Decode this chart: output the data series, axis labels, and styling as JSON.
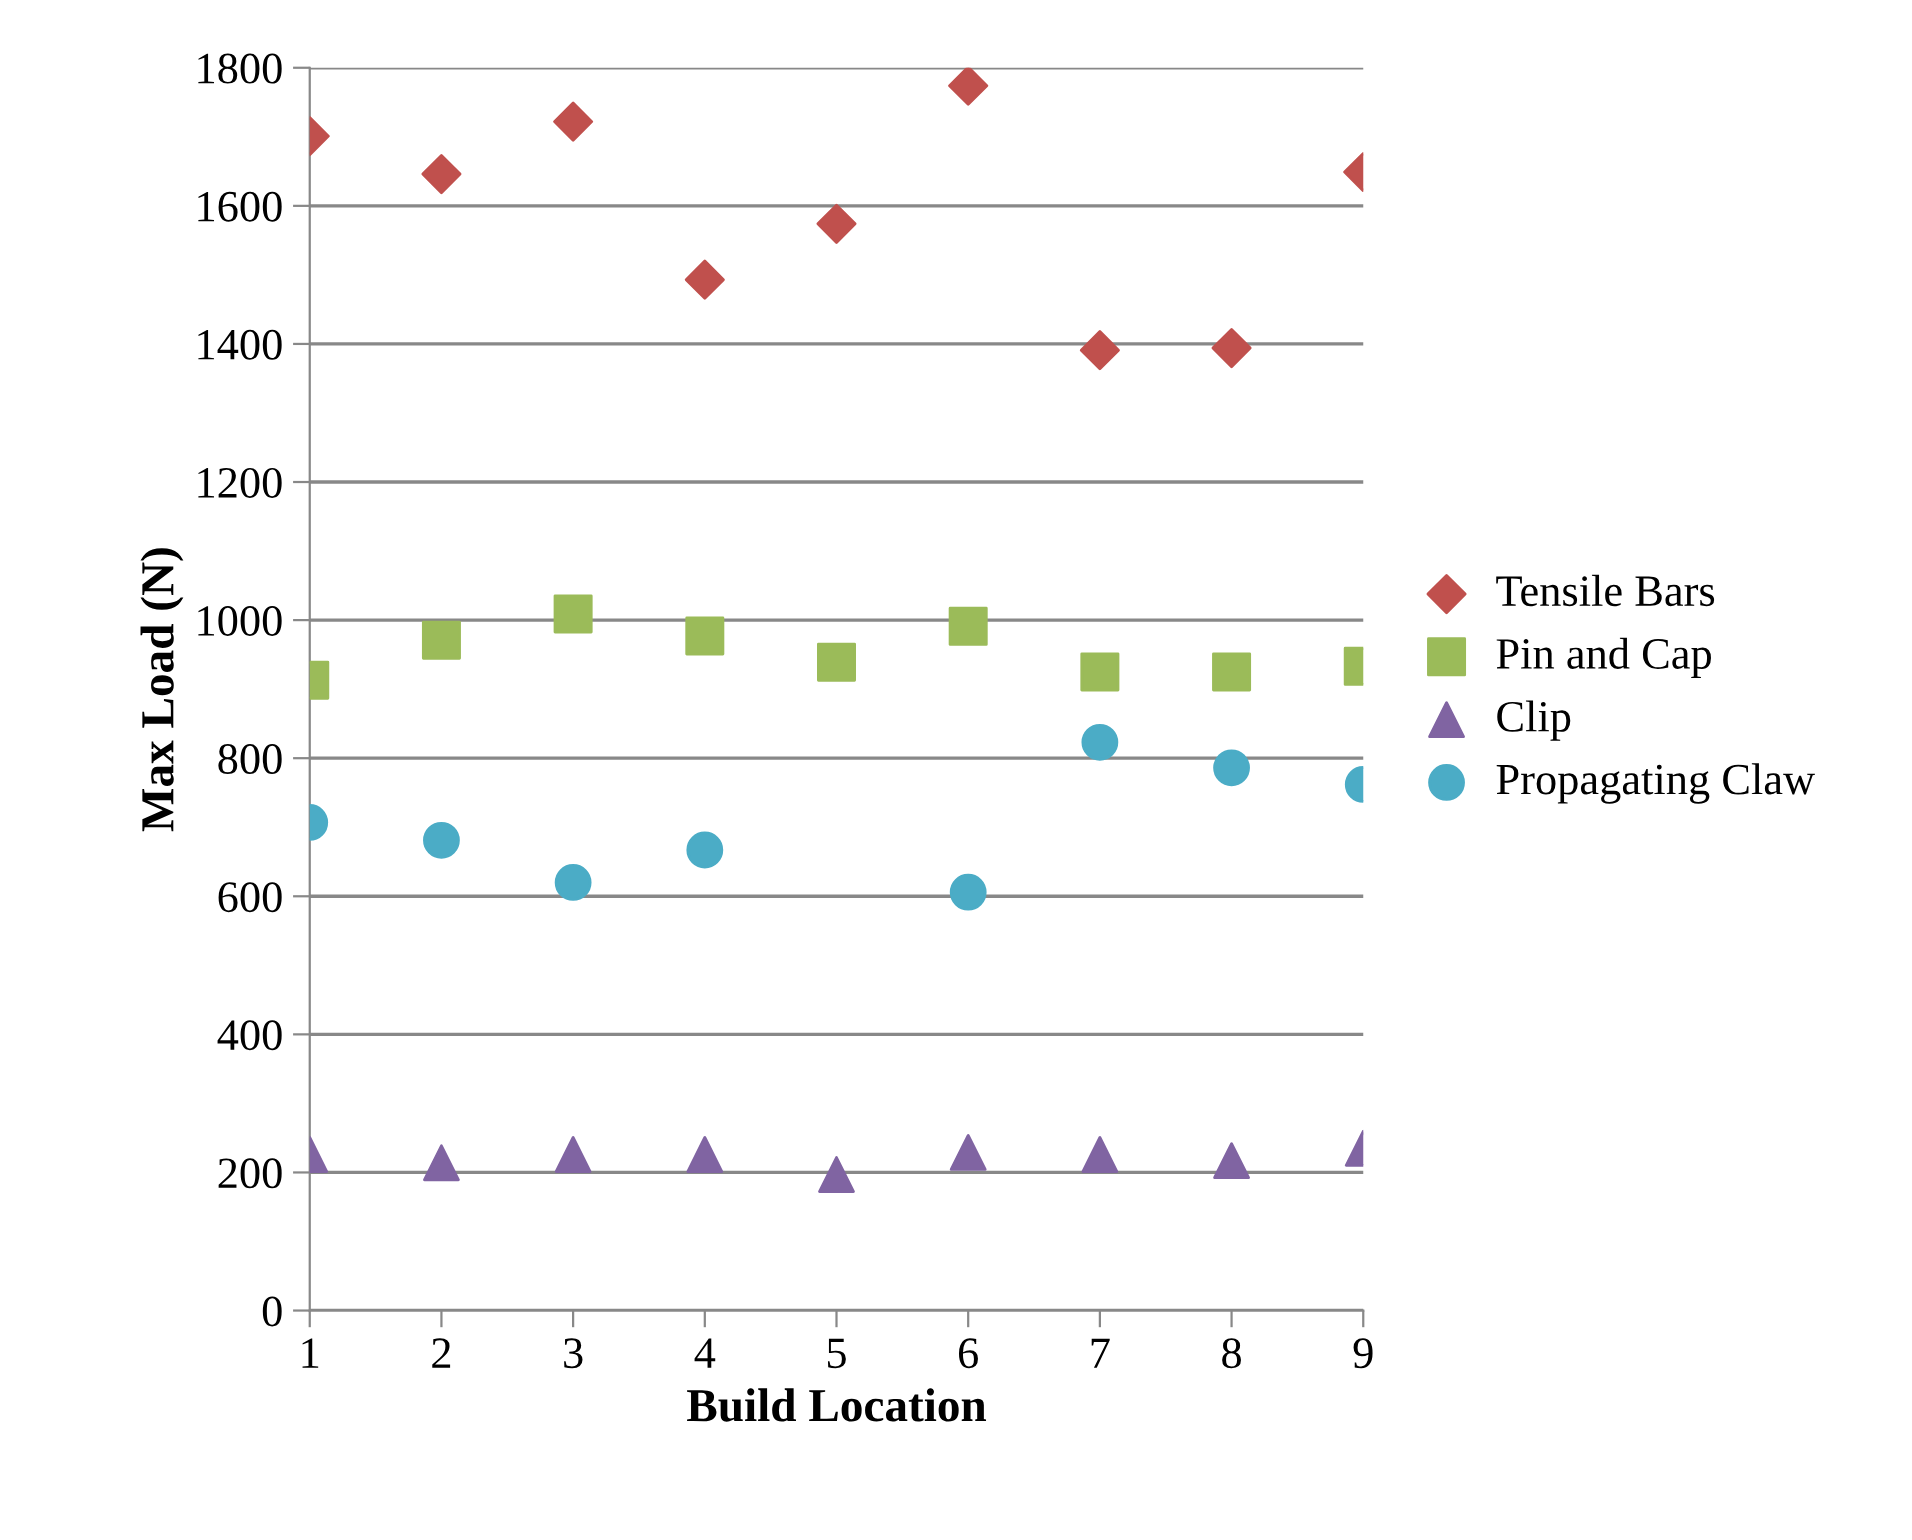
{
  "chart_data": {
    "type": "scatter",
    "xlabel": "Build Location",
    "ylabel": "Max Load (N)",
    "x": [
      1,
      2,
      3,
      4,
      5,
      6,
      7,
      8,
      9
    ],
    "xlim": [
      1,
      9
    ],
    "xticks": [
      1,
      2,
      3,
      4,
      5,
      6,
      7,
      8,
      9
    ],
    "ylim": [
      0,
      1800
    ],
    "yticks": [
      0,
      200,
      400,
      600,
      800,
      1000,
      1200,
      1400,
      1600,
      1800
    ],
    "grid": "y",
    "legend": "right",
    "series": [
      {
        "name": "Tensile Bars",
        "color": "#c0504d",
        "marker": "diamond",
        "values": [
          1701,
          1646,
          1722,
          1493,
          1574,
          1774,
          1391,
          1394,
          1649
        ]
      },
      {
        "name": "Pin and Cap",
        "color": "#9bbb59",
        "marker": "square",
        "values": [
          913,
          971,
          1009,
          977,
          939,
          991,
          925,
          925,
          933
        ]
      },
      {
        "name": "Clip",
        "color": "#8064a2",
        "marker": "triangle",
        "values": [
          226,
          214,
          226,
          226,
          197,
          229,
          226,
          217,
          235
        ]
      },
      {
        "name": "Propagating Claw",
        "color": "#4bacc6",
        "marker": "circle",
        "values": [
          707,
          681,
          620,
          667,
          null,
          606,
          823,
          786,
          762
        ]
      }
    ]
  }
}
